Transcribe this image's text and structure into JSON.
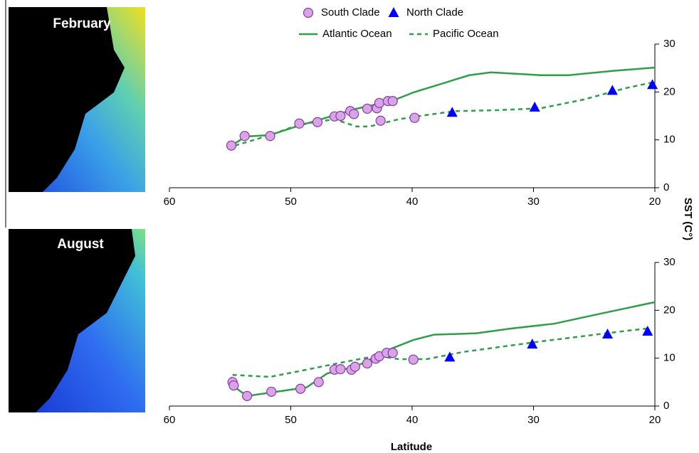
{
  "chart_data": [
    {
      "type": "scatter-line",
      "panel_label": "February",
      "y_label": "SST (C°)",
      "xlim": [
        60,
        20
      ],
      "xticks": [
        60,
        50,
        40,
        30,
        20
      ],
      "ylim": [
        0,
        30
      ],
      "yticks": [
        0,
        10,
        20,
        30
      ],
      "series": [
        {
          "name": "South Clade",
          "style": "circle",
          "color": "#d8a4e6",
          "x": [
            54.9,
            53.8,
            51.7,
            49.3,
            47.8,
            46.4,
            45.9,
            45.1,
            44.8,
            43.7,
            42.9,
            42.7,
            42.0,
            41.6,
            42.6,
            39.8
          ],
          "values": [
            8.8,
            10.8,
            10.8,
            13.4,
            13.7,
            14.9,
            15.0,
            16.0,
            15.4,
            16.5,
            16.6,
            17.7,
            18.1,
            18.1,
            14.0,
            14.6
          ]
        },
        {
          "name": "North Clade",
          "style": "triangle",
          "color": "#0000ff",
          "x": [
            36.7,
            29.9,
            23.5,
            20.2
          ],
          "values": [
            15.7,
            16.8,
            20.3,
            21.5
          ]
        },
        {
          "name": "Atlantic Ocean",
          "style": "solid",
          "color": "#2e9e4a",
          "x": [
            54.9,
            53.7,
            51.7,
            49.9,
            47.9,
            44.6,
            41.7,
            39.9,
            37.6,
            35.3,
            33.5,
            29.4,
            27.1,
            23.5,
            20.0
          ],
          "values": [
            8.8,
            10.7,
            11.0,
            12.5,
            14.0,
            16.5,
            18.1,
            19.9,
            21.7,
            23.5,
            24.1,
            23.5,
            23.5,
            24.4,
            25.1
          ]
        },
        {
          "name": "Pacific Ocean",
          "style": "dashed",
          "color": "#2e9e4a",
          "x": [
            54.6,
            51.7,
            49.3,
            46.4,
            44.6,
            43.5,
            41.1,
            38.8,
            36.4,
            32.9,
            29.4,
            25.9,
            22.4,
            20.0
          ],
          "values": [
            8.8,
            11.0,
            13.2,
            14.3,
            12.8,
            12.8,
            14.3,
            15.2,
            16.0,
            16.2,
            16.6,
            18.4,
            20.8,
            22.1
          ]
        }
      ]
    },
    {
      "type": "scatter-line",
      "panel_label": "August",
      "x_label": "Latitude",
      "xlim": [
        60,
        20
      ],
      "xticks": [
        60,
        50,
        40,
        30,
        20
      ],
      "ylim": [
        0,
        30
      ],
      "yticks": [
        0,
        10,
        20,
        30
      ],
      "series": [
        {
          "style": "circle",
          "color": "#d8a4e6",
          "x": [
            54.8,
            54.7,
            53.6,
            51.6,
            49.2,
            47.7,
            46.4,
            45.9,
            45.0,
            44.7,
            43.7,
            43.0,
            42.7,
            42.1,
            41.6,
            39.9
          ],
          "values": [
            5.0,
            4.3,
            2.1,
            3.0,
            3.6,
            5.0,
            7.6,
            7.7,
            7.6,
            8.2,
            8.9,
            9.9,
            10.4,
            11.1,
            11.1,
            9.7
          ]
        },
        {
          "style": "triangle",
          "color": "#0000ff",
          "x": [
            36.9,
            30.1,
            23.9,
            20.6
          ],
          "values": [
            10.2,
            12.9,
            15.0,
            15.6
          ]
        },
        {
          "style": "solid",
          "color": "#2e9e4a",
          "x": [
            54.9,
            54.6,
            53.6,
            51.7,
            48.7,
            47.0,
            44.6,
            41.7,
            39.9,
            38.2,
            34.7,
            31.8,
            28.3,
            24.1,
            20.0
          ],
          "values": [
            6.1,
            3.9,
            2.1,
            2.8,
            3.9,
            6.8,
            8.3,
            12.0,
            13.8,
            14.9,
            15.2,
            16.2,
            17.2,
            19.5,
            21.7
          ]
        },
        {
          "style": "dashed",
          "color": "#2e9e4a",
          "x": [
            54.8,
            51.7,
            48.7,
            45.8,
            42.9,
            41.1,
            38.8,
            35.8,
            32.9,
            29.4,
            25.9,
            22.4,
            20.6
          ],
          "values": [
            6.5,
            6.1,
            7.6,
            9.1,
            10.5,
            9.8,
            9.8,
            11.3,
            12.3,
            13.5,
            14.6,
            15.7,
            16.2
          ]
        }
      ]
    }
  ]
}
